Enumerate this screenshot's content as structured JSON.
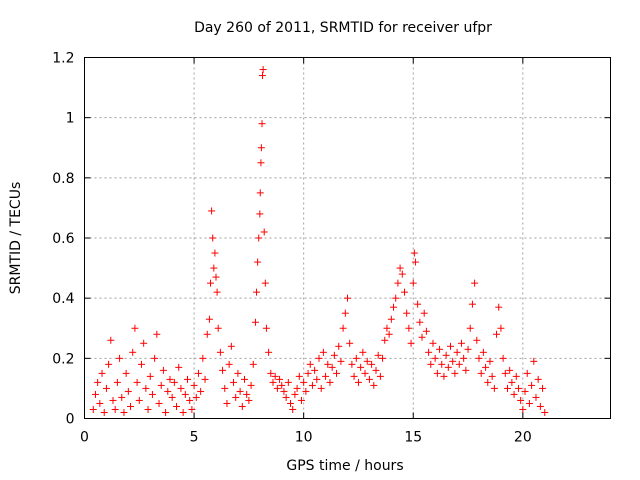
{
  "chart_data": {
    "type": "scatter",
    "title": "Day 260 of 2011, SRMTID for receiver ufpr",
    "xlabel": "GPS time / hours",
    "ylabel": "SRMTID / TECUs",
    "xlim": [
      0,
      24
    ],
    "ylim": [
      0,
      1.2
    ],
    "xticks": [
      0,
      5,
      10,
      15,
      20
    ],
    "xtick_labels": [
      "0",
      "5",
      "10",
      "15",
      "20"
    ],
    "yticks": [
      0,
      0.2,
      0.4,
      0.6,
      0.8,
      1.0,
      1.2
    ],
    "ytick_labels": [
      "0",
      "0.2",
      "0.4",
      "0.6",
      "0.8",
      "1",
      "1.2"
    ],
    "grid": true,
    "marker": "+",
    "color": "#ff0000",
    "series": [
      {
        "name": "SRMTID",
        "points": [
          [
            0.4,
            0.03
          ],
          [
            0.5,
            0.08
          ],
          [
            0.6,
            0.12
          ],
          [
            0.7,
            0.05
          ],
          [
            0.8,
            0.15
          ],
          [
            0.9,
            0.02
          ],
          [
            1.0,
            0.1
          ],
          [
            1.1,
            0.18
          ],
          [
            1.2,
            0.26
          ],
          [
            1.3,
            0.06
          ],
          [
            1.4,
            0.03
          ],
          [
            1.5,
            0.12
          ],
          [
            1.6,
            0.2
          ],
          [
            1.7,
            0.07
          ],
          [
            1.8,
            0.02
          ],
          [
            1.9,
            0.15
          ],
          [
            2.0,
            0.09
          ],
          [
            2.1,
            0.04
          ],
          [
            2.2,
            0.22
          ],
          [
            2.3,
            0.3
          ],
          [
            2.4,
            0.12
          ],
          [
            2.5,
            0.06
          ],
          [
            2.6,
            0.18
          ],
          [
            2.7,
            0.25
          ],
          [
            2.8,
            0.1
          ],
          [
            2.9,
            0.03
          ],
          [
            3.0,
            0.14
          ],
          [
            3.1,
            0.08
          ],
          [
            3.2,
            0.2
          ],
          [
            3.3,
            0.28
          ],
          [
            3.4,
            0.05
          ],
          [
            3.5,
            0.11
          ],
          [
            3.6,
            0.16
          ],
          [
            3.7,
            0.02
          ],
          [
            3.8,
            0.09
          ],
          [
            3.9,
            0.13
          ],
          [
            4.0,
            0.07
          ],
          [
            4.1,
            0.12
          ],
          [
            4.2,
            0.04
          ],
          [
            4.3,
            0.17
          ],
          [
            4.4,
            0.1
          ],
          [
            4.5,
            0.02
          ],
          [
            4.6,
            0.08
          ],
          [
            4.7,
            0.13
          ],
          [
            4.8,
            0.06
          ],
          [
            4.9,
            0.03
          ],
          [
            5.0,
            0.11
          ],
          [
            5.1,
            0.07
          ],
          [
            5.2,
            0.15
          ],
          [
            5.3,
            0.09
          ],
          [
            5.4,
            0.2
          ],
          [
            5.5,
            0.13
          ],
          [
            5.6,
            0.28
          ],
          [
            5.7,
            0.33
          ],
          [
            5.75,
            0.45
          ],
          [
            5.8,
            0.69
          ],
          [
            5.85,
            0.6
          ],
          [
            5.9,
            0.5
          ],
          [
            5.95,
            0.55
          ],
          [
            6.0,
            0.47
          ],
          [
            6.05,
            0.42
          ],
          [
            6.1,
            0.3
          ],
          [
            6.2,
            0.22
          ],
          [
            6.3,
            0.16
          ],
          [
            6.4,
            0.1
          ],
          [
            6.5,
            0.05
          ],
          [
            6.6,
            0.18
          ],
          [
            6.7,
            0.24
          ],
          [
            6.8,
            0.12
          ],
          [
            6.9,
            0.07
          ],
          [
            7.0,
            0.15
          ],
          [
            7.1,
            0.09
          ],
          [
            7.2,
            0.04
          ],
          [
            7.3,
            0.13
          ],
          [
            7.4,
            0.08
          ],
          [
            7.5,
            0.06
          ],
          [
            7.6,
            0.11
          ],
          [
            7.7,
            0.18
          ],
          [
            7.8,
            0.32
          ],
          [
            7.85,
            0.42
          ],
          [
            7.9,
            0.52
          ],
          [
            7.95,
            0.6
          ],
          [
            8.0,
            0.68
          ],
          [
            8.02,
            0.75
          ],
          [
            8.05,
            0.85
          ],
          [
            8.07,
            0.9
          ],
          [
            8.1,
            0.98
          ],
          [
            8.12,
            1.14
          ],
          [
            8.15,
            1.16
          ],
          [
            8.2,
            0.62
          ],
          [
            8.25,
            0.45
          ],
          [
            8.3,
            0.3
          ],
          [
            8.4,
            0.22
          ],
          [
            8.5,
            0.15
          ],
          [
            8.6,
            0.12
          ],
          [
            8.7,
            0.14
          ],
          [
            8.8,
            0.1
          ],
          [
            8.9,
            0.13
          ],
          [
            9.0,
            0.11
          ],
          [
            9.1,
            0.09
          ],
          [
            9.2,
            0.07
          ],
          [
            9.3,
            0.12
          ],
          [
            9.4,
            0.05
          ],
          [
            9.5,
            0.03
          ],
          [
            9.6,
            0.08
          ],
          [
            9.7,
            0.1
          ],
          [
            9.8,
            0.14
          ],
          [
            9.9,
            0.06
          ],
          [
            10.0,
            0.12
          ],
          [
            10.1,
            0.09
          ],
          [
            10.2,
            0.15
          ],
          [
            10.3,
            0.18
          ],
          [
            10.4,
            0.11
          ],
          [
            10.5,
            0.16
          ],
          [
            10.6,
            0.13
          ],
          [
            10.7,
            0.2
          ],
          [
            10.8,
            0.1
          ],
          [
            10.9,
            0.22
          ],
          [
            11.0,
            0.14
          ],
          [
            11.1,
            0.18
          ],
          [
            11.2,
            0.12
          ],
          [
            11.3,
            0.17
          ],
          [
            11.4,
            0.21
          ],
          [
            11.5,
            0.15
          ],
          [
            11.6,
            0.24
          ],
          [
            11.7,
            0.19
          ],
          [
            11.8,
            0.3
          ],
          [
            11.9,
            0.35
          ],
          [
            12.0,
            0.4
          ],
          [
            12.1,
            0.25
          ],
          [
            12.2,
            0.18
          ],
          [
            12.3,
            0.14
          ],
          [
            12.4,
            0.2
          ],
          [
            12.5,
            0.12
          ],
          [
            12.6,
            0.17
          ],
          [
            12.7,
            0.22
          ],
          [
            12.8,
            0.15
          ],
          [
            12.9,
            0.19
          ],
          [
            13.0,
            0.13
          ],
          [
            13.1,
            0.18
          ],
          [
            13.2,
            0.11
          ],
          [
            13.3,
            0.16
          ],
          [
            13.4,
            0.21
          ],
          [
            13.5,
            0.14
          ],
          [
            13.6,
            0.2
          ],
          [
            13.7,
            0.26
          ],
          [
            13.8,
            0.3
          ],
          [
            13.9,
            0.28
          ],
          [
            14.0,
            0.33
          ],
          [
            14.1,
            0.37
          ],
          [
            14.2,
            0.4
          ],
          [
            14.3,
            0.45
          ],
          [
            14.4,
            0.5
          ],
          [
            14.5,
            0.48
          ],
          [
            14.6,
            0.42
          ],
          [
            14.7,
            0.35
          ],
          [
            14.8,
            0.3
          ],
          [
            14.9,
            0.25
          ],
          [
            15.0,
            0.45
          ],
          [
            15.05,
            0.55
          ],
          [
            15.1,
            0.52
          ],
          [
            15.2,
            0.38
          ],
          [
            15.3,
            0.32
          ],
          [
            15.4,
            0.27
          ],
          [
            15.5,
            0.35
          ],
          [
            15.6,
            0.29
          ],
          [
            15.7,
            0.22
          ],
          [
            15.8,
            0.18
          ],
          [
            15.9,
            0.25
          ],
          [
            16.0,
            0.2
          ],
          [
            16.1,
            0.15
          ],
          [
            16.2,
            0.23
          ],
          [
            16.3,
            0.18
          ],
          [
            16.4,
            0.14
          ],
          [
            16.5,
            0.21
          ],
          [
            16.6,
            0.17
          ],
          [
            16.7,
            0.24
          ],
          [
            16.8,
            0.19
          ],
          [
            16.9,
            0.15
          ],
          [
            17.0,
            0.22
          ],
          [
            17.1,
            0.18
          ],
          [
            17.2,
            0.25
          ],
          [
            17.3,
            0.2
          ],
          [
            17.4,
            0.16
          ],
          [
            17.5,
            0.23
          ],
          [
            17.6,
            0.3
          ],
          [
            17.7,
            0.38
          ],
          [
            17.8,
            0.45
          ],
          [
            17.9,
            0.26
          ],
          [
            18.0,
            0.2
          ],
          [
            18.1,
            0.15
          ],
          [
            18.2,
            0.22
          ],
          [
            18.3,
            0.17
          ],
          [
            18.4,
            0.12
          ],
          [
            18.5,
            0.19
          ],
          [
            18.6,
            0.14
          ],
          [
            18.7,
            0.1
          ],
          [
            18.8,
            0.28
          ],
          [
            18.9,
            0.37
          ],
          [
            19.0,
            0.3
          ],
          [
            19.1,
            0.2
          ],
          [
            19.2,
            0.15
          ],
          [
            19.3,
            0.1
          ],
          [
            19.4,
            0.16
          ],
          [
            19.5,
            0.12
          ],
          [
            19.6,
            0.08
          ],
          [
            19.7,
            0.14
          ],
          [
            19.8,
            0.1
          ],
          [
            19.9,
            0.06
          ],
          [
            20.0,
            0.03
          ],
          [
            20.1,
            0.09
          ],
          [
            20.2,
            0.15
          ],
          [
            20.3,
            0.05
          ],
          [
            20.4,
            0.11
          ],
          [
            20.5,
            0.19
          ],
          [
            20.6,
            0.07
          ],
          [
            20.7,
            0.13
          ],
          [
            20.8,
            0.04
          ],
          [
            20.9,
            0.1
          ],
          [
            21.0,
            0.02
          ]
        ]
      }
    ]
  }
}
